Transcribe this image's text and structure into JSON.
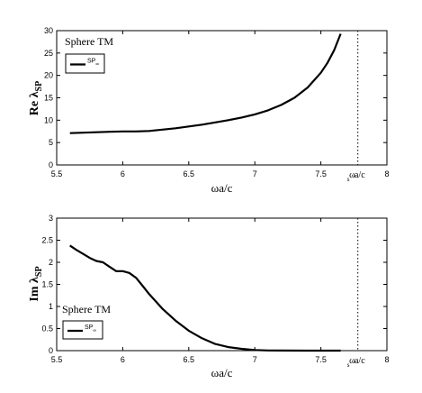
{
  "chart_data": [
    {
      "type": "line",
      "panel_text": "Sphere TM",
      "legend": {
        "label": "SP",
        "subscript": "∞",
        "placement": "top-left"
      },
      "xlabel": "ωa/c",
      "ylabel_main": "Re λ",
      "ylabel_sub": "SP",
      "xlim": [
        5.5,
        8
      ],
      "ylim": [
        0,
        30
      ],
      "xticks": [
        "5.5",
        "6",
        "6.5",
        "7",
        "7.5",
        "8"
      ],
      "yticks": [
        "0",
        "5",
        "10",
        "15",
        "20",
        "25",
        "30"
      ],
      "marker": {
        "x": 7.78,
        "label_main": "ω",
        "label_sub": "s",
        "label_tail": "a/c"
      },
      "series": [
        {
          "x": [
            5.6,
            5.7,
            5.8,
            5.9,
            6.0,
            6.1,
            6.2,
            6.3,
            6.4,
            6.5,
            6.6,
            6.7,
            6.8,
            6.9,
            7.0,
            7.1,
            7.2,
            7.3,
            7.4,
            7.5,
            7.55,
            7.6,
            7.65
          ],
          "y": [
            7.1,
            7.2,
            7.3,
            7.4,
            7.5,
            7.5,
            7.6,
            7.9,
            8.2,
            8.6,
            9.0,
            9.5,
            10.0,
            10.6,
            11.3,
            12.2,
            13.4,
            15.0,
            17.3,
            20.6,
            22.8,
            25.6,
            29.3
          ]
        }
      ]
    },
    {
      "type": "line",
      "panel_text": "Sphere TM",
      "legend": {
        "label": "SP",
        "subscript": "∞",
        "placement": "bottom-left"
      },
      "xlabel": "ωa/c",
      "ylabel_main": "Im λ",
      "ylabel_sub": "SP",
      "xlim": [
        5.5,
        8
      ],
      "ylim": [
        0,
        3
      ],
      "xticks": [
        "5.5",
        "6",
        "6.5",
        "7",
        "7.5",
        "8"
      ],
      "yticks": [
        "0",
        "0.5",
        "1",
        "1.5",
        "2",
        "2.5",
        "3"
      ],
      "marker": {
        "x": 7.78,
        "label_main": "ω",
        "label_sub": "s",
        "label_tail": "a/c"
      },
      "series": [
        {
          "x": [
            5.6,
            5.65,
            5.7,
            5.75,
            5.8,
            5.85,
            5.9,
            5.95,
            6.0,
            6.05,
            6.1,
            6.15,
            6.2,
            6.3,
            6.4,
            6.5,
            6.6,
            6.7,
            6.8,
            6.9,
            7.0,
            7.1,
            7.2,
            7.4,
            7.65
          ],
          "y": [
            2.38,
            2.28,
            2.19,
            2.1,
            2.03,
            2.0,
            1.9,
            1.8,
            1.8,
            1.76,
            1.65,
            1.47,
            1.28,
            0.95,
            0.68,
            0.45,
            0.28,
            0.15,
            0.08,
            0.04,
            0.015,
            0.005,
            0.002,
            0.0,
            0.0
          ]
        }
      ]
    }
  ]
}
